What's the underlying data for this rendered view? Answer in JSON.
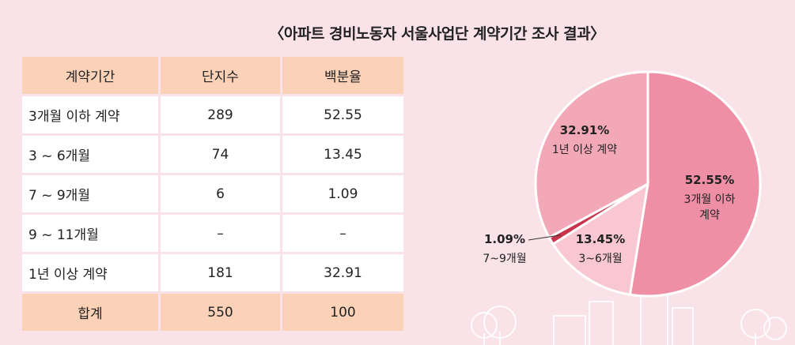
{
  "title": "〈아파트 경비노동자 서울사업단 계약기간 조사 결과〉",
  "table": {
    "headers": [
      "계약기간",
      "단지수",
      "백분율"
    ],
    "rows": [
      {
        "period": "3개월 이하 계약",
        "count": "289",
        "percent": "52.55"
      },
      {
        "period": "3 ~ 6개월",
        "count": "74",
        "percent": "13.45"
      },
      {
        "period": "7 ~ 9개월",
        "count": "6",
        "percent": "1.09"
      },
      {
        "period": "9 ~ 11개월",
        "count": "–",
        "percent": "–"
      },
      {
        "period": "1년 이상 계약",
        "count": "181",
        "percent": "32.91"
      }
    ],
    "total": {
      "label": "합계",
      "count": "550",
      "percent": "100"
    }
  },
  "chart_data": {
    "type": "pie",
    "slices": [
      {
        "label_lines": [
          "3개월 이하",
          "계약"
        ],
        "value": 52.55,
        "value_label": "52.55%",
        "color": "#ef8fa5"
      },
      {
        "label_lines": [
          "3~6개월"
        ],
        "value": 13.45,
        "value_label": "13.45%",
        "color": "#f8c7d1"
      },
      {
        "label_lines": [
          "7~9개월"
        ],
        "value": 1.09,
        "value_label": "1.09%",
        "color": "#c9344c"
      },
      {
        "label_lines": [
          "1년 이상 계약"
        ],
        "value": 32.91,
        "value_label": "32.91%",
        "color": "#f3a8b8"
      }
    ]
  }
}
